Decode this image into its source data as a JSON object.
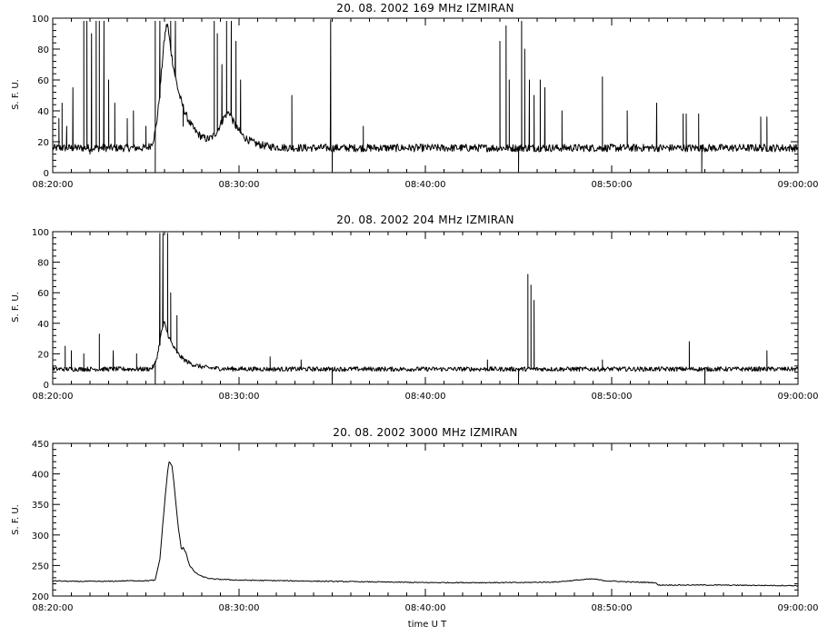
{
  "chart_data": [
    {
      "type": "line",
      "title": "20. 08. 2002   169 MHz    IZMIRAN",
      "xlabel": "",
      "ylabel": "S. F. U.",
      "xlim": [
        "08:20:00",
        "09:00:00"
      ],
      "ylim": [
        0,
        100
      ],
      "yticks": [
        0,
        20,
        40,
        60,
        80,
        100
      ],
      "xticks": [
        "08:20:00",
        "08:30:00",
        "08:40:00",
        "08:50:00",
        "09:00:00"
      ],
      "baseline": 16,
      "noise": 2.5,
      "humps": [
        {
          "t": "08:26:10",
          "peak": 80,
          "rise_s": 20,
          "decay_s": 45
        },
        {
          "t": "08:29:30",
          "peak": 22,
          "rise_s": 30,
          "decay_s": 40
        }
      ],
      "spikes": [
        {
          "t": "08:20:20",
          "v": 35
        },
        {
          "t": "08:20:30",
          "v": 45
        },
        {
          "t": "08:20:45",
          "v": 30
        },
        {
          "t": "08:21:05",
          "v": 55
        },
        {
          "t": "08:21:40",
          "v": 98
        },
        {
          "t": "08:21:50",
          "v": 98
        },
        {
          "t": "08:22:05",
          "v": 90
        },
        {
          "t": "08:22:20",
          "v": 98
        },
        {
          "t": "08:22:30",
          "v": 98
        },
        {
          "t": "08:22:45",
          "v": 98
        },
        {
          "t": "08:23:00",
          "v": 60
        },
        {
          "t": "08:23:20",
          "v": 45
        },
        {
          "t": "08:24:00",
          "v": 35
        },
        {
          "t": "08:24:20",
          "v": 40
        },
        {
          "t": "08:25:00",
          "v": 30
        },
        {
          "t": "08:25:30",
          "v": 98
        },
        {
          "t": "08:25:45",
          "v": 98
        },
        {
          "t": "08:26:20",
          "v": 98
        },
        {
          "t": "08:26:35",
          "v": 98
        },
        {
          "t": "08:27:00",
          "v": 30
        },
        {
          "t": "08:28:40",
          "v": 98
        },
        {
          "t": "08:28:50",
          "v": 90
        },
        {
          "t": "08:29:05",
          "v": 70
        },
        {
          "t": "08:29:20",
          "v": 98
        },
        {
          "t": "08:29:35",
          "v": 98
        },
        {
          "t": "08:29:50",
          "v": 85
        },
        {
          "t": "08:30:05",
          "v": 60
        },
        {
          "t": "08:32:50",
          "v": 50
        },
        {
          "t": "08:34:55",
          "v": 99
        },
        {
          "t": "08:36:40",
          "v": 30
        },
        {
          "t": "08:44:00",
          "v": 85
        },
        {
          "t": "08:44:20",
          "v": 95
        },
        {
          "t": "08:44:30",
          "v": 60
        },
        {
          "t": "08:45:10",
          "v": 98
        },
        {
          "t": "08:45:20",
          "v": 80
        },
        {
          "t": "08:45:35",
          "v": 60
        },
        {
          "t": "08:45:50",
          "v": 50
        },
        {
          "t": "08:46:10",
          "v": 60
        },
        {
          "t": "08:46:25",
          "v": 55
        },
        {
          "t": "08:47:20",
          "v": 40
        },
        {
          "t": "08:49:30",
          "v": 62
        },
        {
          "t": "08:50:50",
          "v": 40
        },
        {
          "t": "08:52:25",
          "v": 45
        },
        {
          "t": "08:53:50",
          "v": 38
        },
        {
          "t": "08:54:00",
          "v": 38
        },
        {
          "t": "08:54:40",
          "v": 38
        },
        {
          "t": "08:58:00",
          "v": 36
        },
        {
          "t": "08:58:20",
          "v": 36
        }
      ],
      "dips": [
        {
          "t": "08:22:00",
          "v": 12
        },
        {
          "t": "08:25:30",
          "v": 0
        },
        {
          "t": "08:35:00",
          "v": 0
        },
        {
          "t": "08:45:00",
          "v": 0
        },
        {
          "t": "08:54:50",
          "v": 0
        }
      ]
    },
    {
      "type": "line",
      "title": "20. 08. 2002   204 MHz    IZMIRAN",
      "xlabel": "",
      "ylabel": "S. F. U.",
      "xlim": [
        "08:20:00",
        "09:00:00"
      ],
      "ylim": [
        0,
        100
      ],
      "yticks": [
        0,
        20,
        40,
        60,
        80,
        100
      ],
      "xticks": [
        "08:20:00",
        "08:30:00",
        "08:40:00",
        "08:50:00",
        "09:00:00"
      ],
      "baseline": 10,
      "noise": 1.5,
      "humps": [
        {
          "t": "08:26:00",
          "peak": 30,
          "rise_s": 15,
          "decay_s": 40
        }
      ],
      "spikes": [
        {
          "t": "08:20:40",
          "v": 25
        },
        {
          "t": "08:21:00",
          "v": 22
        },
        {
          "t": "08:21:40",
          "v": 20
        },
        {
          "t": "08:22:30",
          "v": 33
        },
        {
          "t": "08:23:15",
          "v": 22
        },
        {
          "t": "08:24:30",
          "v": 20
        },
        {
          "t": "08:25:45",
          "v": 99
        },
        {
          "t": "08:25:55",
          "v": 99
        },
        {
          "t": "08:26:10",
          "v": 99
        },
        {
          "t": "08:26:20",
          "v": 60
        },
        {
          "t": "08:26:40",
          "v": 45
        },
        {
          "t": "08:31:40",
          "v": 18
        },
        {
          "t": "08:33:20",
          "v": 16
        },
        {
          "t": "08:43:20",
          "v": 16
        },
        {
          "t": "08:45:30",
          "v": 72
        },
        {
          "t": "08:45:40",
          "v": 65
        },
        {
          "t": "08:45:50",
          "v": 55
        },
        {
          "t": "08:49:30",
          "v": 16
        },
        {
          "t": "08:54:10",
          "v": 28
        },
        {
          "t": "08:58:20",
          "v": 22
        }
      ],
      "dips": [
        {
          "t": "08:25:30",
          "v": 0
        },
        {
          "t": "08:35:00",
          "v": 0
        },
        {
          "t": "08:45:00",
          "v": 0
        },
        {
          "t": "08:55:00",
          "v": 0
        }
      ]
    },
    {
      "type": "line",
      "title": "20. 08. 2002    3000 MHz    IZMIRAN",
      "xlabel": "time  U T",
      "ylabel": "S. F. U.",
      "xlim": [
        "08:20:00",
        "09:00:00"
      ],
      "ylim": [
        200,
        450
      ],
      "yticks": [
        200,
        250,
        300,
        350,
        400,
        450
      ],
      "xticks": [
        "08:20:00",
        "08:30:00",
        "08:40:00",
        "08:50:00",
        "09:00:00"
      ],
      "profile": [
        [
          "08:20:00",
          225
        ],
        [
          "08:21:00",
          224
        ],
        [
          "08:22:00",
          224
        ],
        [
          "08:23:00",
          224
        ],
        [
          "08:24:00",
          225
        ],
        [
          "08:25:00",
          225
        ],
        [
          "08:25:30",
          226
        ],
        [
          "08:25:45",
          260
        ],
        [
          "08:26:00",
          350
        ],
        [
          "08:26:10",
          405
        ],
        [
          "08:26:15",
          420
        ],
        [
          "08:26:25",
          412
        ],
        [
          "08:26:35",
          360
        ],
        [
          "08:26:45",
          310
        ],
        [
          "08:26:55",
          275
        ],
        [
          "08:27:00",
          280
        ],
        [
          "08:27:10",
          270
        ],
        [
          "08:27:20",
          250
        ],
        [
          "08:27:40",
          238
        ],
        [
          "08:28:00",
          232
        ],
        [
          "08:28:30",
          228
        ],
        [
          "08:30:00",
          226
        ],
        [
          "08:35:00",
          224
        ],
        [
          "08:40:00",
          222
        ],
        [
          "08:45:00",
          222
        ],
        [
          "08:47:00",
          223
        ],
        [
          "08:48:30",
          227
        ],
        [
          "08:49:00",
          228
        ],
        [
          "08:49:40",
          225
        ],
        [
          "08:51:00",
          223
        ],
        [
          "08:52:20",
          222
        ],
        [
          "08:52:30",
          218
        ],
        [
          "08:55:00",
          218
        ],
        [
          "09:00:00",
          217
        ]
      ],
      "noise": 0.8
    }
  ]
}
